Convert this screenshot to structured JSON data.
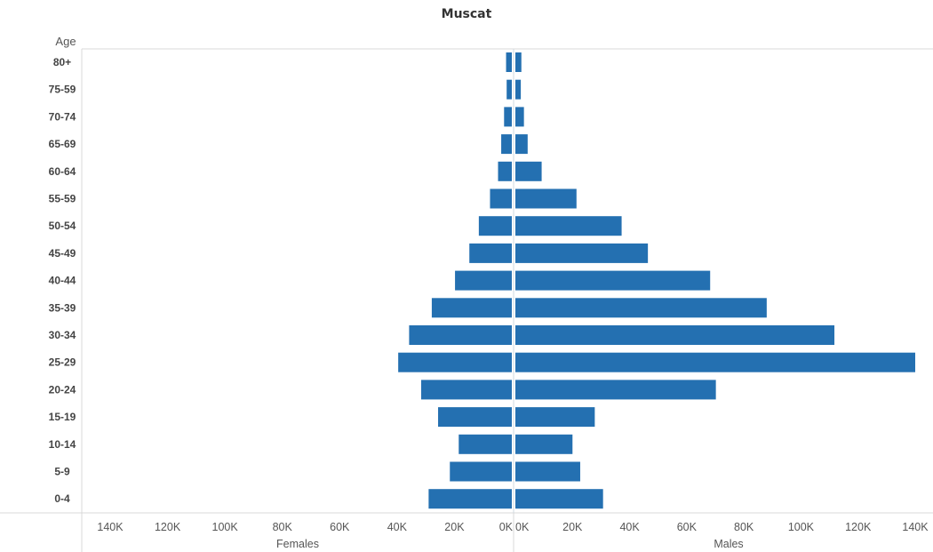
{
  "chart_data": {
    "type": "bar",
    "orientation": "horizontal",
    "subtype": "population-pyramid",
    "title": "Muscat",
    "row_header": "Age",
    "categories": [
      "80+",
      "75-59",
      "70-74",
      "65-69",
      "60-64",
      "55-59",
      "50-54",
      "45-49",
      "40-44",
      "35-39",
      "30-34",
      "25-29",
      "20-24",
      "15-19",
      "10-14",
      "5-9",
      "0-4"
    ],
    "series": [
      {
        "name": "Females",
        "values": [
          2000,
          1800,
          2700,
          3700,
          4800,
          7600,
          11500,
          14800,
          19800,
          27900,
          35800,
          39600,
          31600,
          25700,
          18500,
          21600,
          29000
        ]
      },
      {
        "name": "Males",
        "values": [
          2100,
          1900,
          3000,
          4300,
          9200,
          21400,
          37200,
          46400,
          68200,
          88000,
          111700,
          140000,
          70200,
          27800,
          20000,
          22700,
          30700
        ]
      }
    ],
    "xlabels": {
      "left": "Females",
      "right": "Males"
    },
    "xlim": [
      0,
      140000
    ],
    "x_ticks": [
      140000,
      120000,
      100000,
      80000,
      60000,
      40000,
      20000,
      0
    ],
    "x_tick_labels": [
      "140K",
      "120K",
      "100K",
      "80K",
      "60K",
      "40K",
      "20K",
      "0K"
    ],
    "grid": false,
    "color": "#2470b1"
  }
}
